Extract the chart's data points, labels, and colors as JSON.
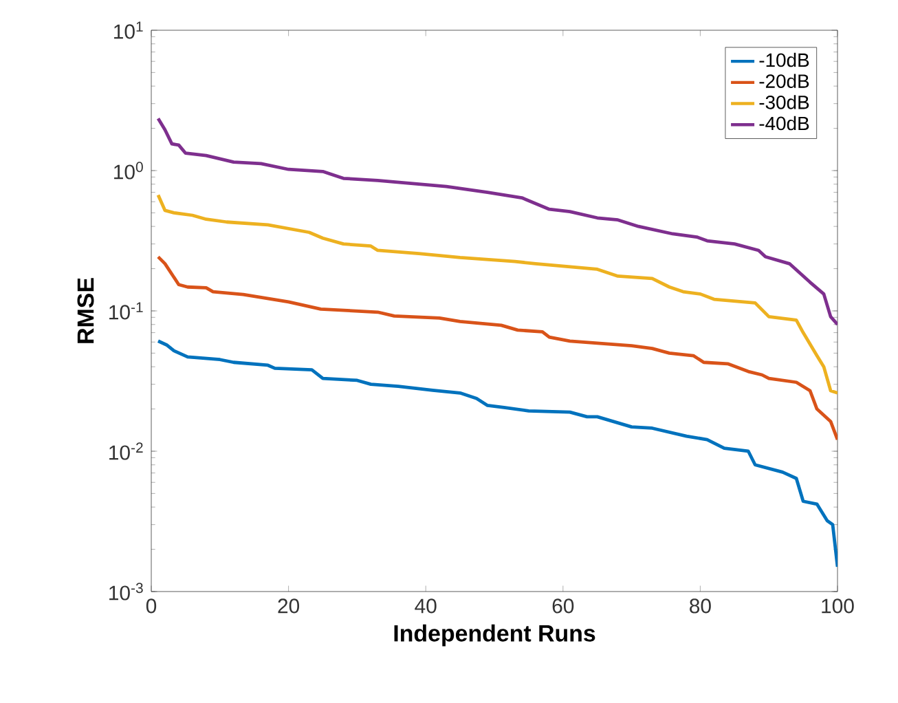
{
  "chart_data": {
    "type": "line",
    "xlabel": "Independent Runs",
    "ylabel": "RMSE",
    "log": "y",
    "legend": "top right",
    "grid": false,
    "xlim": [
      0,
      100
    ],
    "xticks": [
      0,
      20,
      40,
      60,
      80,
      100
    ],
    "ylim": [
      0.001,
      10
    ],
    "yticks": [
      {
        "value": 0.001,
        "label": "10$^{-3}$"
      },
      {
        "value": 0.01,
        "label": "10$^{-2}$"
      },
      {
        "value": 0.1,
        "label": "10$^{-1}$"
      },
      {
        "value": 1,
        "label": "10$^{0}$"
      },
      {
        "value": 10,
        "label": "10$^{1}$"
      }
    ],
    "series": [
      {
        "name": "-10dB",
        "color": "#0072bd",
        "x": [
          1,
          2.3,
          3.3,
          5.3,
          10,
          12,
          17,
          18,
          23.4,
          25,
          30,
          32,
          36,
          41,
          45,
          47.4,
          49,
          51.4,
          55,
          61,
          63.5,
          65,
          70,
          73,
          78,
          81,
          83.5,
          87,
          88,
          92,
          94,
          95,
          97,
          98.5,
          99.3,
          100
        ],
        "values": [
          0.061,
          0.057,
          0.052,
          0.047,
          0.045,
          0.043,
          0.041,
          0.039,
          0.038,
          0.033,
          0.032,
          0.03,
          0.029,
          0.0272,
          0.026,
          0.0238,
          0.0212,
          0.0205,
          0.0194,
          0.019,
          0.0176,
          0.0176,
          0.0149,
          0.0146,
          0.0128,
          0.0121,
          0.0105,
          0.01,
          0.008,
          0.0071,
          0.0064,
          0.0044,
          0.0042,
          0.0032,
          0.003,
          0.0015
        ]
      },
      {
        "name": "-20dB",
        "color": "#d95319",
        "x": [
          1,
          2,
          4,
          5.3,
          8,
          9,
          13.4,
          20,
          24.7,
          33,
          35.4,
          42,
          45,
          51,
          53.4,
          57,
          58,
          61,
          70,
          73,
          75.5,
          79,
          80.5,
          84,
          87,
          89,
          90,
          94,
          96,
          97,
          99,
          100
        ],
        "values": [
          0.243,
          0.217,
          0.154,
          0.148,
          0.146,
          0.137,
          0.131,
          0.116,
          0.103,
          0.098,
          0.092,
          0.089,
          0.084,
          0.079,
          0.073,
          0.071,
          0.065,
          0.061,
          0.0565,
          0.054,
          0.05,
          0.048,
          0.043,
          0.042,
          0.037,
          0.035,
          0.033,
          0.031,
          0.027,
          0.02,
          0.0163,
          0.0121
        ]
      },
      {
        "name": "-30dB",
        "color": "#edb120",
        "x": [
          1,
          2,
          3.3,
          6,
          8,
          11,
          17,
          23,
          25,
          28,
          32,
          33,
          39,
          45,
          53,
          56,
          65,
          68,
          73,
          75.5,
          77.5,
          80,
          82,
          88,
          90,
          94,
          95,
          96,
          97,
          98,
          99,
          100
        ],
        "values": [
          0.67,
          0.52,
          0.5,
          0.48,
          0.45,
          0.43,
          0.41,
          0.363,
          0.33,
          0.3,
          0.29,
          0.27,
          0.256,
          0.24,
          0.225,
          0.217,
          0.198,
          0.177,
          0.17,
          0.148,
          0.137,
          0.132,
          0.121,
          0.114,
          0.091,
          0.086,
          0.07,
          0.058,
          0.048,
          0.04,
          0.027,
          0.026
        ]
      },
      {
        "name": "-40dB",
        "color": "#7e2f8e",
        "x": [
          1,
          2,
          3,
          4,
          5,
          8,
          12,
          16,
          20,
          25,
          28,
          33,
          43,
          49,
          54,
          58,
          61,
          65,
          68,
          71,
          76,
          79.5,
          81,
          85,
          88.5,
          89.5,
          93,
          96,
          98,
          99,
          100
        ],
        "values": [
          2.35,
          1.95,
          1.55,
          1.52,
          1.33,
          1.28,
          1.15,
          1.12,
          1.02,
          0.985,
          0.88,
          0.85,
          0.77,
          0.7,
          0.64,
          0.53,
          0.51,
          0.46,
          0.445,
          0.4,
          0.354,
          0.336,
          0.316,
          0.3,
          0.27,
          0.243,
          0.217,
          0.16,
          0.132,
          0.091,
          0.08
        ]
      }
    ]
  }
}
